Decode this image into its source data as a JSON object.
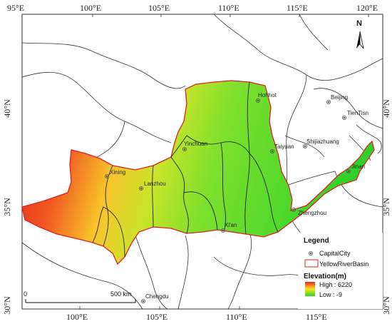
{
  "map": {
    "lon_ticks_top": [
      "95°E",
      "100°E",
      "105°E",
      "110°E",
      "115°E",
      "120°E"
    ],
    "lon_ticks_bottom": [
      "100°E",
      "105°E",
      "110°E",
      "115°E"
    ],
    "lat_ticks_left": [
      "40°N",
      "35°N",
      "30°N"
    ],
    "lat_ticks_right": [
      "40°N",
      "35°N",
      "30°N"
    ],
    "north_label": "N",
    "cities": [
      "Hohhot",
      "Beijing",
      "TienTisn",
      "Yinchuan",
      "Taiyuan",
      "Shijiazhuang",
      "Xining",
      "Lanzhou",
      "Jinan",
      "Zhengzhou",
      "Xi'an",
      "Chengdu"
    ]
  },
  "legend": {
    "title": "Legend",
    "capital_label": "CapitalCity",
    "basin_label": "YellowRiverBasin",
    "elevation_title": "Elevation(m)",
    "high_label": "High : 6220",
    "low_label": "Low : -9",
    "colors": {
      "high": "#e8281c",
      "mid": "#f7e51d",
      "low": "#2fd12a",
      "basin_outline": "#e02020"
    }
  },
  "scale_bar": {
    "start_label": "0",
    "end_label": "500 km"
  }
}
